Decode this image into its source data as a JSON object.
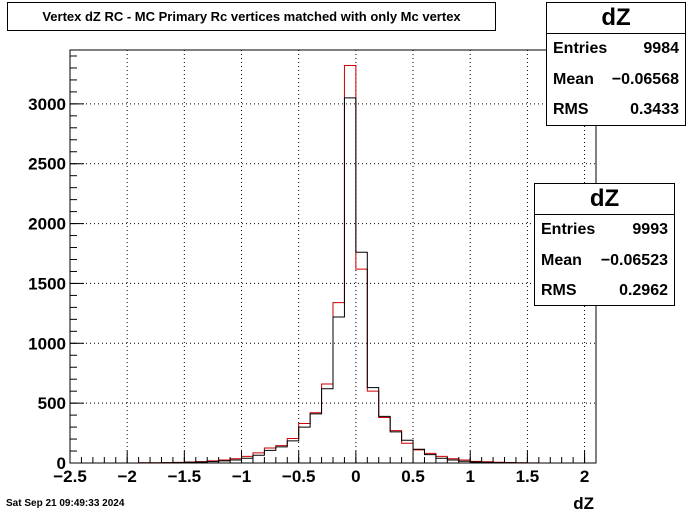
{
  "title": "Vertex dZ RC - MC Primary Rc vertices matched with only Mc vertex",
  "footer": "Sat Sep 21 09:49:33 2024",
  "stats": [
    {
      "name": "dZ",
      "entries_label": "Entries",
      "entries": "9984",
      "mean_label": "Mean",
      "mean": "−0.06568",
      "rms_label": "RMS",
      "rms": "0.3433",
      "color": "#cc0000"
    },
    {
      "name": "dZ",
      "entries_label": "Entries",
      "entries": "9993",
      "mean_label": "Mean",
      "mean": "−0.06523",
      "rms_label": "RMS",
      "rms": "0.2962",
      "color": "#000000"
    }
  ],
  "chart_data": {
    "type": "histogram",
    "xlabel": "dZ",
    "ylabel": "",
    "xlim": [
      -2.5,
      2.1
    ],
    "ylim": [
      0,
      3450
    ],
    "bin_width": 0.1,
    "bin_start": -2.5,
    "grid": true,
    "x_ticks": [
      "−2.5",
      "−2",
      "−1.5",
      "−1",
      "−0.5",
      "0",
      "0.5",
      "1",
      "1.5",
      "2"
    ],
    "x_tick_values": [
      -2.5,
      -2,
      -1.5,
      -1,
      -0.5,
      0,
      0.5,
      1,
      1.5,
      2
    ],
    "y_ticks": [
      "0",
      "500",
      "1000",
      "1500",
      "2000",
      "2500",
      "3000"
    ],
    "y_tick_values": [
      0,
      500,
      1000,
      1500,
      2000,
      2500,
      3000
    ],
    "series": [
      {
        "color": "#cc0000",
        "values": [
          0,
          0,
          0,
          0,
          0,
          0,
          2,
          2,
          3,
          5,
          8,
          12,
          18,
          25,
          35,
          55,
          85,
          125,
          145,
          205,
          330,
          420,
          660,
          1340,
          3320,
          1620,
          600,
          380,
          270,
          165,
          110,
          80,
          55,
          35,
          25,
          14,
          10,
          6,
          4,
          2,
          1,
          0,
          0,
          0,
          0,
          0
        ]
      },
      {
        "color": "#000000",
        "values": [
          0,
          0,
          0,
          0,
          0,
          0,
          1,
          1,
          2,
          3,
          6,
          8,
          12,
          18,
          25,
          40,
          65,
          105,
          135,
          185,
          300,
          410,
          620,
          1220,
          3050,
          1760,
          630,
          390,
          260,
          190,
          115,
          70,
          40,
          25,
          15,
          8,
          5,
          3,
          2,
          1,
          0,
          0,
          0,
          0,
          0,
          0
        ]
      }
    ]
  }
}
